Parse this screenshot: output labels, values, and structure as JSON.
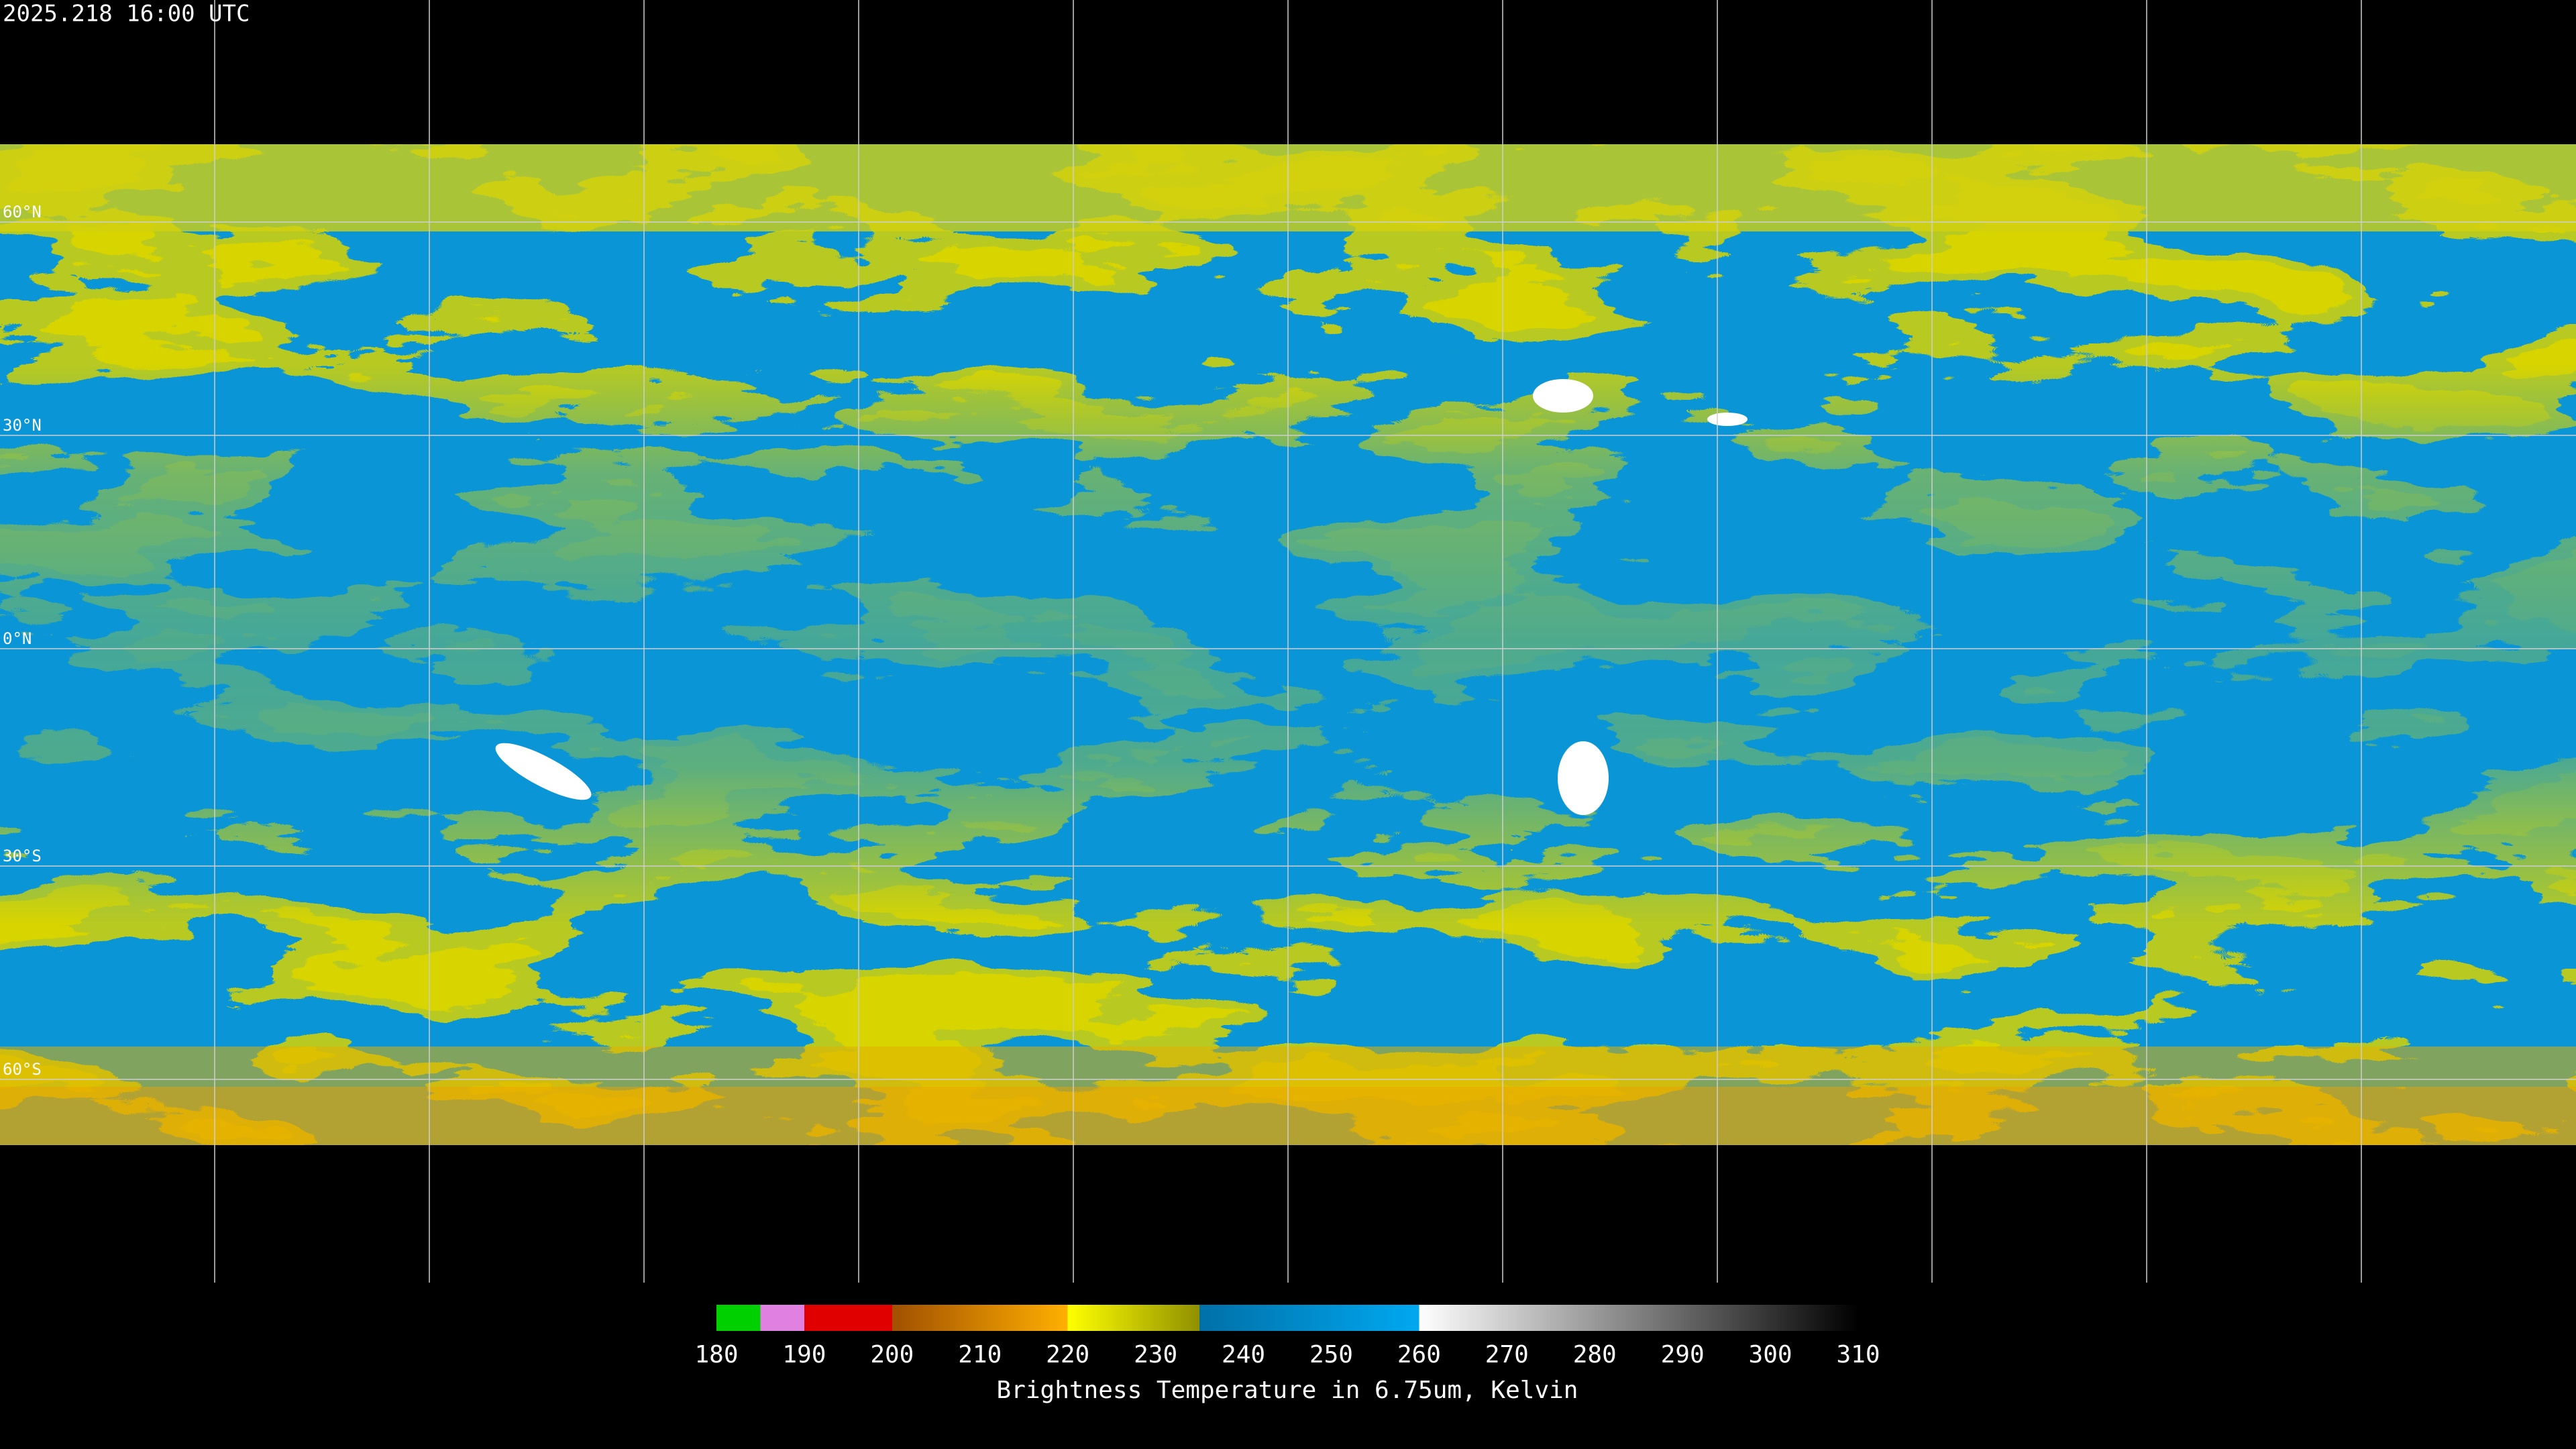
{
  "header": {
    "timestamp": "2025.218 16:00 UTC"
  },
  "map": {
    "lat_labels": [
      "60°N",
      "30°N",
      "0°N",
      "30°S",
      "60°S"
    ]
  },
  "colorbar": {
    "ticks": [
      180,
      190,
      200,
      210,
      220,
      230,
      240,
      250,
      260,
      270,
      280,
      290,
      300,
      310
    ],
    "caption": "Brightness Temperature in 6.75um, Kelvin"
  }
}
